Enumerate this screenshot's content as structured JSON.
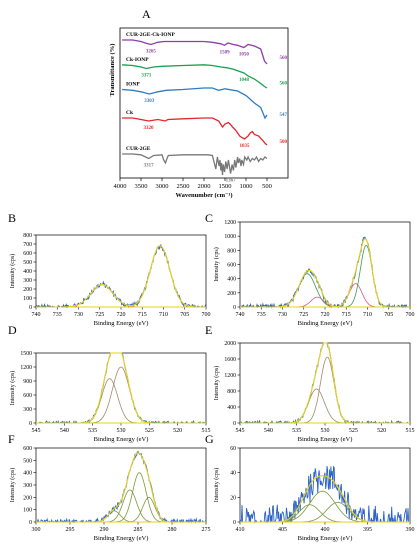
{
  "chart_data": [
    {
      "panel": "A",
      "type": "line",
      "xlabel": "Wavenumber",
      "xunit": "(cm⁻¹)",
      "ylabel": "Transmittance (%)",
      "xlim": [
        4000,
        0
      ],
      "ylim": [
        0,
        100
      ],
      "x_ticks": [
        4000,
        3500,
        3000,
        2500,
        2000,
        1500,
        1000,
        500
      ],
      "series": [
        {
          "name": "CUR-2GE-Ck-IONP",
          "color": "#8e3ea4",
          "peak_labels": [
            "3265",
            "1509",
            "1050",
            "560"
          ],
          "points": [
            [
              3950,
              92
            ],
            [
              3700,
              92
            ],
            [
              3500,
              91
            ],
            [
              3400,
              90
            ],
            [
              3265,
              89
            ],
            [
              3100,
              90.5
            ],
            [
              2950,
              91
            ],
            [
              2500,
              91
            ],
            [
              2000,
              91
            ],
            [
              1800,
              90.5
            ],
            [
              1600,
              89.5
            ],
            [
              1509,
              88.5
            ],
            [
              1430,
              90
            ],
            [
              1300,
              89
            ],
            [
              1200,
              88.5
            ],
            [
              1050,
              87
            ],
            [
              950,
              89
            ],
            [
              800,
              88
            ],
            [
              650,
              86
            ],
            [
              560,
              78
            ],
            [
              500,
              76
            ]
          ]
        },
        {
          "name": "Ck-IONP",
          "color": "#18a050",
          "peak_labels": [
            "3371",
            "1048",
            "560"
          ],
          "points": [
            [
              3950,
              75.5
            ],
            [
              3700,
              75
            ],
            [
              3500,
              74
            ],
            [
              3371,
              73
            ],
            [
              3200,
              74
            ],
            [
              3000,
              74.5
            ],
            [
              2500,
              75
            ],
            [
              2000,
              75.5
            ],
            [
              1800,
              75
            ],
            [
              1600,
              74
            ],
            [
              1450,
              73.5
            ],
            [
              1300,
              72.5
            ],
            [
              1150,
              71
            ],
            [
              1048,
              70
            ],
            [
              950,
              68
            ],
            [
              800,
              66
            ],
            [
              650,
              63
            ],
            [
              560,
              61
            ],
            [
              500,
              60
            ]
          ]
        },
        {
          "name": "IONP",
          "color": "#2f7bbd",
          "peak_labels": [
            "3303",
            "547"
          ],
          "points": [
            [
              3950,
              59
            ],
            [
              3700,
              58.5
            ],
            [
              3500,
              57.5
            ],
            [
              3303,
              56
            ],
            [
              3100,
              57.5
            ],
            [
              2900,
              58.5
            ],
            [
              2500,
              59
            ],
            [
              2000,
              60
            ],
            [
              1800,
              60
            ],
            [
              1650,
              58.5
            ],
            [
              1500,
              59.5
            ],
            [
              1200,
              58
            ],
            [
              1000,
              55
            ],
            [
              800,
              50
            ],
            [
              650,
              47
            ],
            [
              547,
              40
            ],
            [
              500,
              42
            ]
          ]
        },
        {
          "name": "Ck",
          "color": "#e3262c",
          "peak_labels": [
            "3320",
            "1035",
            "500"
          ],
          "points": [
            [
              3950,
              40
            ],
            [
              3700,
              40
            ],
            [
              3500,
              39
            ],
            [
              3320,
              38
            ],
            [
              3100,
              39
            ],
            [
              2920,
              38
            ],
            [
              2860,
              39
            ],
            [
              2500,
              39.5
            ],
            [
              2000,
              40
            ],
            [
              1800,
              40
            ],
            [
              1650,
              38
            ],
            [
              1560,
              34
            ],
            [
              1500,
              36
            ],
            [
              1420,
              37
            ],
            [
              1380,
              36
            ],
            [
              1320,
              34
            ],
            [
              1250,
              32
            ],
            [
              1200,
              30
            ],
            [
              1150,
              28
            ],
            [
              1100,
              27
            ],
            [
              1035,
              26
            ],
            [
              950,
              28
            ],
            [
              900,
              30
            ],
            [
              850,
              31
            ],
            [
              800,
              29
            ],
            [
              700,
              28
            ],
            [
              600,
              25
            ],
            [
              540,
              23
            ],
            [
              500,
              22
            ]
          ]
        },
        {
          "name": "CUR-2GE",
          "color": "#777777",
          "peak_labels": [
            "3317",
            "1367"
          ],
          "points": [
            [
              3950,
              16
            ],
            [
              3700,
              16
            ],
            [
              3500,
              15.5
            ],
            [
              3317,
              13
            ],
            [
              3200,
              15
            ],
            [
              3000,
              15.5
            ],
            [
              2960,
              12
            ],
            [
              2920,
              10
            ],
            [
              2880,
              13
            ],
            [
              2850,
              15
            ],
            [
              2500,
              15.5
            ],
            [
              2200,
              15.5
            ],
            [
              1900,
              15.5
            ],
            [
              1800,
              15
            ],
            [
              1720,
              6
            ],
            [
              1680,
              14
            ],
            [
              1640,
              8
            ],
            [
              1620,
              12
            ],
            [
              1600,
              5
            ],
            [
              1580,
              10
            ],
            [
              1560,
              2
            ],
            [
              1540,
              9
            ],
            [
              1510,
              4
            ],
            [
              1480,
              11
            ],
            [
              1450,
              6
            ],
            [
              1420,
              12
            ],
            [
              1390,
              7
            ],
            [
              1367,
              3
            ],
            [
              1330,
              9
            ],
            [
              1300,
              5
            ],
            [
              1270,
              12
            ],
            [
              1240,
              7
            ],
            [
              1200,
              14
            ],
            [
              1180,
              10
            ],
            [
              1150,
              13
            ],
            [
              1120,
              8
            ],
            [
              1100,
              12
            ],
            [
              1060,
              9
            ],
            [
              1030,
              14
            ],
            [
              980,
              12
            ],
            [
              950,
              14
            ],
            [
              900,
              11
            ],
            [
              850,
              13
            ],
            [
              800,
              12
            ],
            [
              750,
              14
            ],
            [
              700,
              11
            ],
            [
              650,
              13
            ],
            [
              600,
              12
            ],
            [
              550,
              14
            ],
            [
              500,
              13
            ]
          ]
        }
      ]
    },
    {
      "panel": "B",
      "type": "line",
      "xlabel": "Binding Energy (eV)",
      "ylabel": "Intensity (cps)",
      "xlim": [
        740,
        700
      ],
      "ylim": [
        0,
        800
      ],
      "x_ticks": [
        740,
        735,
        730,
        725,
        720,
        715,
        710,
        705,
        700
      ],
      "y_ticks": [
        0,
        100,
        200,
        300,
        400,
        500,
        600,
        700,
        800
      ],
      "noise": 15,
      "components": [
        {
          "center": 724.5,
          "height": 250,
          "width": 2.6,
          "color": "#e08a3c"
        },
        {
          "center": 710.8,
          "height": 680,
          "width": 2.3,
          "color": "#e08a3c"
        }
      ]
    },
    {
      "panel": "C",
      "type": "line",
      "xlabel": "Binding Energy (eV)",
      "ylabel": "Intensity (cps)",
      "xlim": [
        740,
        700
      ],
      "ylim": [
        0,
        1200
      ],
      "x_ticks": [
        740,
        735,
        730,
        725,
        720,
        715,
        710,
        705,
        700
      ],
      "y_ticks": [
        0,
        200,
        400,
        600,
        800,
        1000,
        1200
      ],
      "noise": 20,
      "components": [
        {
          "center": 724.2,
          "height": 470,
          "width": 2.0,
          "color": "#3b9a55"
        },
        {
          "center": 721.8,
          "height": 140,
          "width": 1.5,
          "color": "#d45a8a"
        },
        {
          "center": 712.8,
          "height": 330,
          "width": 1.5,
          "color": "#d45a8a"
        },
        {
          "center": 710.3,
          "height": 870,
          "width": 1.4,
          "color": "#3b9a55"
        }
      ]
    },
    {
      "panel": "D",
      "type": "line",
      "xlabel": "Binding Energy (eV)",
      "ylabel": "Intensity (cps)",
      "xlim": [
        545,
        515
      ],
      "ylim": [
        0,
        1500
      ],
      "x_ticks": [
        545,
        540,
        535,
        530,
        525,
        520,
        515
      ],
      "y_ticks": [
        0,
        300,
        600,
        900,
        1200,
        1500
      ],
      "noise": 20,
      "components": [
        {
          "center": 532.0,
          "height": 950,
          "width": 1.4,
          "color": "#a08a70"
        },
        {
          "center": 530.0,
          "height": 1200,
          "width": 1.5,
          "color": "#a08a70"
        }
      ]
    },
    {
      "panel": "E",
      "type": "line",
      "xlabel": "Binding Energy (eV)",
      "ylabel": "Intensity (cps)",
      "xlim": [
        545,
        515
      ],
      "ylim": [
        0,
        2000
      ],
      "x_ticks": [
        545,
        540,
        535,
        530,
        525,
        520,
        515
      ],
      "y_ticks": [
        0,
        400,
        800,
        1200,
        1600,
        2000
      ],
      "noise": 25,
      "components": [
        {
          "center": 531.5,
          "height": 850,
          "width": 1.4,
          "color": "#a08a70"
        },
        {
          "center": 529.6,
          "height": 1650,
          "width": 1.2,
          "color": "#a08a70"
        }
      ]
    },
    {
      "panel": "F",
      "type": "line",
      "xlabel": "Binding Energy (eV)",
      "ylabel": "Intensity (cps)",
      "xlim": [
        300,
        275
      ],
      "ylim": [
        0,
        600
      ],
      "x_ticks": [
        300,
        295,
        290,
        285,
        280,
        275
      ],
      "y_ticks": [
        0,
        100,
        200,
        300,
        400,
        500,
        600
      ],
      "noise": 12,
      "components": [
        {
          "center": 288.5,
          "height": 90,
          "width": 0.9,
          "color": "#7a9a3a"
        },
        {
          "center": 286.2,
          "height": 260,
          "width": 1.0,
          "color": "#7a9a3a"
        },
        {
          "center": 284.8,
          "height": 400,
          "width": 1.0,
          "color": "#7a9a3a"
        },
        {
          "center": 283.4,
          "height": 200,
          "width": 0.9,
          "color": "#7a9a3a"
        }
      ]
    },
    {
      "panel": "G",
      "type": "line",
      "xlabel": "Binding Energy (eV)",
      "ylabel": "Intensity (cps)",
      "xlim": [
        410,
        390
      ],
      "ylim": [
        0,
        60
      ],
      "x_ticks": [
        410,
        405,
        400,
        395,
        390
      ],
      "y_ticks": [
        0,
        20,
        40,
        60
      ],
      "noise": 7,
      "components": [
        {
          "center": 401.8,
          "height": 14,
          "width": 1.2,
          "color": "#7a9a3a"
        },
        {
          "center": 400.3,
          "height": 25,
          "width": 1.5,
          "color": "#7a9a3a"
        },
        {
          "center": 398.5,
          "height": 16,
          "width": 1.3,
          "color": "#7a9a3a"
        }
      ]
    }
  ]
}
